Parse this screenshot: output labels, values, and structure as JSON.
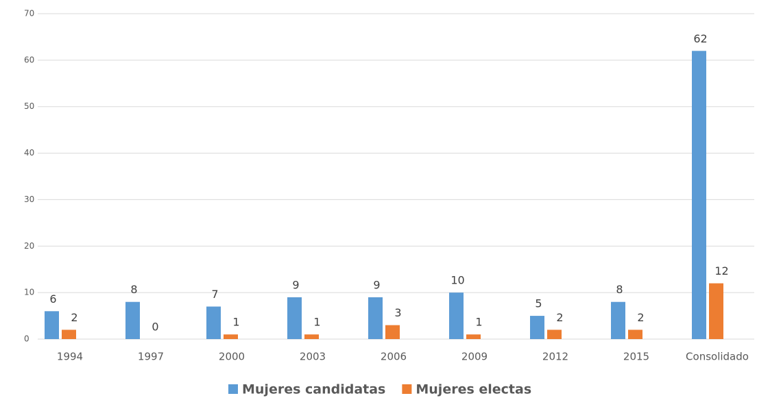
{
  "chart_data": {
    "type": "bar",
    "categories": [
      "1994",
      "1997",
      "2000",
      "2003",
      "2006",
      "2009",
      "2012",
      "2015",
      "Consolidado"
    ],
    "series": [
      {
        "name": "Mujeres candidatas",
        "color": "#5b9bd5",
        "values": [
          6,
          8,
          7,
          9,
          9,
          10,
          5,
          8,
          62
        ]
      },
      {
        "name": "Mujeres electas",
        "color": "#ed7d31",
        "values": [
          2,
          0,
          1,
          1,
          3,
          1,
          2,
          2,
          12
        ]
      }
    ],
    "ylim": [
      0,
      70
    ],
    "yticks": [
      0,
      10,
      20,
      30,
      40,
      50,
      60,
      70
    ],
    "grid": true,
    "legend": "bottom"
  }
}
